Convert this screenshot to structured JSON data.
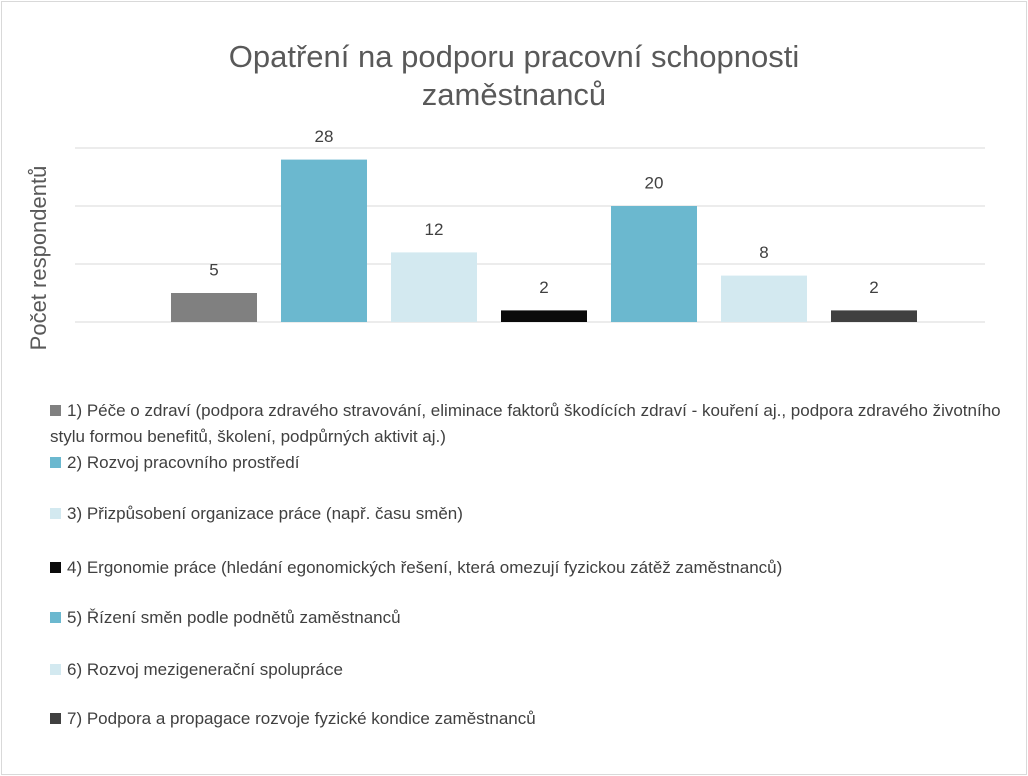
{
  "chart_data": {
    "type": "bar",
    "title": "Opatření na podporu pracovní schopnosti zaměstnanců",
    "y_label": "Počet respondentů",
    "ylim": [
      0,
      30
    ],
    "yticks": [
      0,
      10,
      20,
      30
    ],
    "grid": true,
    "legend": "bottom",
    "series": [
      {
        "name": "1) Péče o zdraví (podpora zdravého stravování, eliminace faktorů škodících zdraví - kouření aj., podpora zdravého životního stylu formou benefitů, školení, podpůrných aktivit aj.)",
        "color": "#808080",
        "values": [
          5
        ]
      },
      {
        "name": "2) Rozvoj pracovního prostředí",
        "color": "#6bb8cf",
        "values": [
          28
        ]
      },
      {
        "name": "3) Přizpůsobení organizace práce (např. času směn)",
        "color": "#d3e9f0",
        "values": [
          12
        ]
      },
      {
        "name": "4) Ergonomie práce (hledání egonomických řešení, která omezují fyzickou zátěž zaměstnanců)",
        "color": "#0a0a0a",
        "values": [
          2
        ]
      },
      {
        "name": "5) Řízení směn podle podnětů zaměstnanců",
        "color": "#6bb8cf",
        "values": [
          20
        ]
      },
      {
        "name": "6) Rozvoj mezigenerační spolupráce",
        "color": "#d3e9f0",
        "values": [
          8
        ]
      },
      {
        "name": "7) Podpora a propagace rozvoje fyzické kondice zaměstnanců",
        "color": "#404040",
        "values": [
          2
        ]
      }
    ]
  }
}
